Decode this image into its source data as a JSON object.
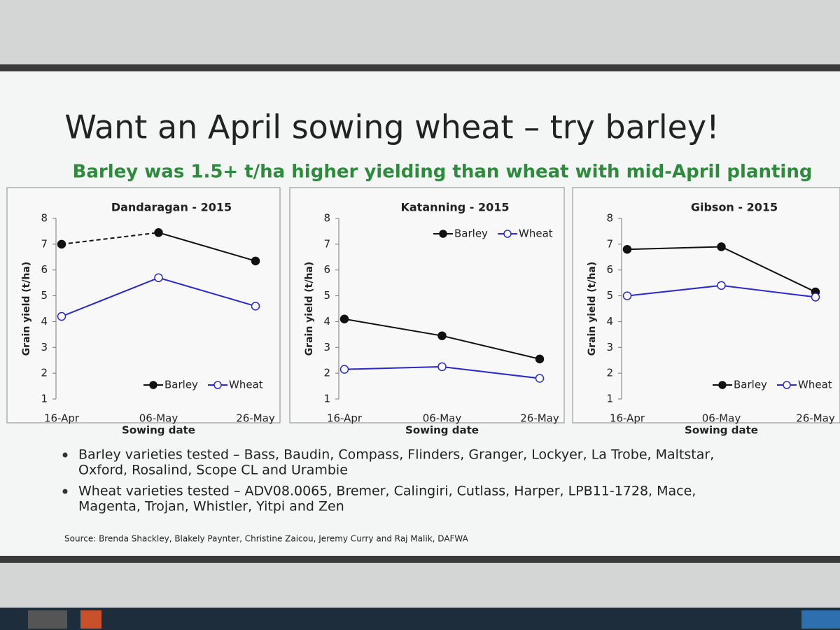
{
  "slide": {
    "title": "Want an April sowing wheat – try barley!",
    "subtitle": "Barley was 1.5+ t/ha higher yielding than wheat with mid-April planting",
    "bullets": [
      [
        "Barley varieties tested – Bass, Baudin, Compass, Flinders, Granger, Lockyer, La Trobe, Maltstar,",
        "Oxford, Rosalind, Scope CL and Urambie"
      ],
      [
        "Wheat varieties tested – ADV08.0065, Bremer, Calingiri, Cutlass, Harper, LPB11-1728, Mace,",
        "Magenta, Trojan, Whistler, Yitpi and Zen"
      ]
    ],
    "source": "Source: Brenda Shackley, Blakely Paynter, Christine Zaicou, Jeremy Curry and Raj Malik, DAFWA"
  },
  "chart_data": [
    {
      "type": "line",
      "title": "Dandaragan - 2015",
      "x_label": "Sowing date",
      "y_label": "Grain yield (t/ha)",
      "categories": [
        "16-Apr",
        "06-May",
        "26-May"
      ],
      "ylim": [
        1,
        8
      ],
      "yticks": [
        1,
        2,
        3,
        4,
        5,
        6,
        7,
        8
      ],
      "legend": "bottom",
      "series": [
        {
          "name": "Barley",
          "color": "#111111",
          "marker_fill": "#111111",
          "dashed_segments": [
            0
          ],
          "values": [
            7.0,
            7.45,
            6.35
          ]
        },
        {
          "name": "Wheat",
          "color": "#2a2acc",
          "marker_fill": "#ffffff",
          "values": [
            4.2,
            5.7,
            4.6
          ]
        }
      ]
    },
    {
      "type": "line",
      "title": "Katanning - 2015",
      "x_label": "Sowing date",
      "y_label": "Grain yield (t/ha)",
      "categories": [
        "16-Apr",
        "06-May",
        "26-May"
      ],
      "ylim": [
        1,
        8
      ],
      "yticks": [
        1,
        2,
        3,
        4,
        5,
        6,
        7,
        8
      ],
      "legend": "top-right",
      "series": [
        {
          "name": "Barley",
          "color": "#111111",
          "marker_fill": "#111111",
          "values": [
            4.1,
            3.45,
            2.55
          ]
        },
        {
          "name": "Wheat",
          "color": "#2a2acc",
          "marker_fill": "#ffffff",
          "values": [
            2.15,
            2.25,
            1.8
          ]
        }
      ]
    },
    {
      "type": "line",
      "title": "Gibson - 2015",
      "x_label": "Sowing date",
      "y_label": "Grain yield (t/ha)",
      "categories": [
        "16-Apr",
        "06-May",
        "26-May"
      ],
      "ylim": [
        1,
        8
      ],
      "yticks": [
        1,
        2,
        3,
        4,
        5,
        6,
        7,
        8
      ],
      "legend": "bottom-right",
      "series": [
        {
          "name": "Barley",
          "color": "#111111",
          "marker_fill": "#111111",
          "values": [
            6.8,
            6.9,
            5.15
          ]
        },
        {
          "name": "Wheat",
          "color": "#2a2acc",
          "marker_fill": "#ffffff",
          "values": [
            5.0,
            5.4,
            4.95
          ]
        }
      ]
    }
  ]
}
